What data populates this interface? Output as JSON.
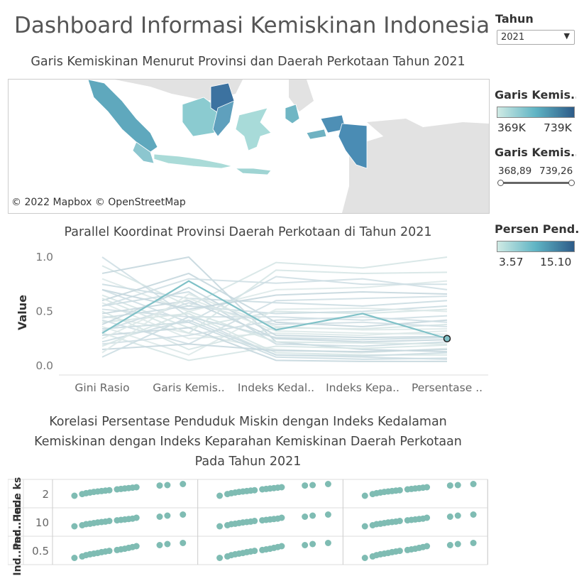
{
  "dashboard": {
    "title": "Dashboard Informasi Kemiskinan Indonesia",
    "map_title": "Garis Kemiskinan Menurut Provinsi dan Daerah Perkotaan Tahun 2021",
    "parallel_title": "Parallel Koordinat Provinsi Daerah Perkotaan di Tahun 2021",
    "scatter_title_1": "Korelasi Persentase Penduduk Miskin dengan Indeks Kedalaman",
    "scatter_title_2": "Kemiskinan dengan Indeks Keparahan Kemiskinan Daerah Perkotaan",
    "scatter_title_3": "Pada Tahun 2021",
    "map_copyright": "© 2022 Mapbox © OpenStreetMap"
  },
  "filters": {
    "year_label": "Tahun",
    "year_value": "2021",
    "legend_garis_title": "Garis Kemis..",
    "legend_garis_min": "369K",
    "legend_garis_max": "739K",
    "range_title": "Garis Kemis..",
    "range_min": "368,89",
    "range_max": "739,26",
    "range_low_fraction": 0,
    "range_high_fraction": 1,
    "legend_persen_title": "Persen Pend..",
    "legend_persen_min": "3.57",
    "legend_persen_max": "15.10"
  },
  "colors": {
    "ramp_light": "#cfeae4",
    "ramp_mid": "#5fb4c4",
    "ramp_dark": "#2d5b88",
    "highlight_line": "#7fc1c7",
    "scatter_point": "#7fbcb3",
    "map_land_gray": "#e2e2e2"
  },
  "chart_data": [
    {
      "type": "line",
      "subtype": "parallel_coordinates",
      "title": "Parallel Koordinat Provinsi Daerah Perkotaan di Tahun 2021",
      "ylabel": "Value",
      "categories": [
        "Gini Rasio",
        "Garis Kemis..",
        "Indeks Kedal..",
        "Indeks Kepa..",
        "Persentase .."
      ],
      "yticks": [
        "1.0",
        "0.5",
        "0.0"
      ],
      "ylim": [
        0,
        1
      ],
      "highlighted": [
        0.3,
        0.78,
        0.33,
        0.48,
        0.25
      ],
      "series": [
        {
          "values": [
            1.0,
            0.45,
            0.1,
            0.08,
            0.06
          ]
        },
        {
          "values": [
            0.92,
            0.55,
            0.95,
            0.9,
            1.0
          ]
        },
        {
          "values": [
            0.85,
            1.0,
            0.22,
            0.15,
            0.13
          ]
        },
        {
          "values": [
            0.8,
            0.5,
            0.7,
            0.72,
            0.78
          ]
        },
        {
          "values": [
            0.75,
            0.62,
            0.58,
            0.55,
            0.6
          ]
        },
        {
          "values": [
            0.7,
            0.4,
            0.82,
            0.75,
            0.75
          ]
        },
        {
          "values": [
            0.65,
            0.35,
            0.5,
            0.48,
            0.52
          ]
        },
        {
          "values": [
            0.6,
            0.85,
            0.4,
            0.36,
            0.42
          ]
        },
        {
          "values": [
            0.58,
            0.25,
            0.3,
            0.28,
            0.32
          ]
        },
        {
          "values": [
            0.55,
            0.68,
            0.2,
            0.18,
            0.22
          ]
        },
        {
          "values": [
            0.52,
            0.45,
            0.45,
            0.42,
            0.46
          ]
        },
        {
          "values": [
            0.5,
            0.15,
            0.35,
            0.34,
            0.38
          ]
        },
        {
          "values": [
            0.48,
            0.6,
            0.25,
            0.22,
            0.24
          ]
        },
        {
          "values": [
            0.46,
            0.3,
            0.15,
            0.12,
            0.16
          ]
        },
        {
          "values": [
            0.44,
            0.55,
            0.48,
            0.5,
            0.55
          ]
        },
        {
          "values": [
            0.42,
            0.2,
            0.6,
            0.62,
            0.64
          ]
        },
        {
          "values": [
            0.4,
            0.48,
            0.12,
            0.1,
            0.1
          ]
        },
        {
          "values": [
            0.38,
            0.72,
            0.28,
            0.26,
            0.27
          ]
        },
        {
          "values": [
            0.36,
            0.1,
            0.52,
            0.53,
            0.5
          ]
        },
        {
          "values": [
            0.34,
            0.4,
            0.08,
            0.06,
            0.07
          ]
        },
        {
          "values": [
            0.32,
            0.58,
            0.38,
            0.4,
            0.36
          ]
        },
        {
          "values": [
            0.3,
            0.05,
            0.18,
            0.16,
            0.19
          ]
        },
        {
          "values": [
            0.28,
            0.35,
            0.05,
            0.04,
            0.04
          ]
        },
        {
          "values": [
            0.25,
            0.62,
            0.32,
            0.3,
            0.29
          ]
        },
        {
          "values": [
            0.22,
            0.42,
            0.1,
            0.09,
            0.12
          ]
        },
        {
          "values": [
            0.2,
            0.28,
            0.42,
            0.45,
            0.4
          ]
        },
        {
          "values": [
            0.18,
            0.5,
            0.22,
            0.21,
            0.2
          ]
        },
        {
          "values": [
            0.15,
            0.2,
            0.14,
            0.13,
            0.15
          ]
        },
        {
          "values": [
            0.12,
            0.66,
            0.36,
            0.33,
            0.34
          ]
        },
        {
          "values": [
            0.08,
            0.45,
            0.26,
            0.24,
            0.26
          ]
        },
        {
          "values": [
            0.55,
            0.8,
            0.76,
            0.8,
            0.7
          ]
        },
        {
          "values": [
            0.62,
            0.3,
            0.88,
            0.85,
            0.86
          ]
        },
        {
          "values": [
            0.7,
            0.52,
            0.65,
            0.68,
            0.66
          ]
        }
      ]
    },
    {
      "type": "scatter",
      "subtype": "scatter_matrix",
      "title": "Korelasi Persentase Penduduk Miskin dengan Indeks Kedalaman Kemiskinan dengan Indeks Keparahan Kemiskinan Daerah Perkotaan Pada Tahun 2021",
      "row_labels": [
        "Inde ks..",
        "Ind..Per..",
        "Ind..Per.."
      ],
      "row_ticks": [
        "2",
        "10",
        "0.5"
      ],
      "rows": [
        {
          "x": [
            0.2,
            0.4,
            0.5,
            0.6,
            0.7,
            0.8,
            0.9,
            1.0,
            1.1,
            1.3,
            1.4,
            1.5,
            1.6,
            1.7,
            1.8,
            2.4,
            2.6,
            3.0
          ],
          "y": [
            0.4,
            0.48,
            0.52,
            0.55,
            0.58,
            0.6,
            0.62,
            0.64,
            0.66,
            0.7,
            0.72,
            0.74,
            0.76,
            0.78,
            0.8,
            0.88,
            0.9,
            0.95
          ]
        },
        {
          "x": [
            0.2,
            0.4,
            0.5,
            0.6,
            0.7,
            0.8,
            0.9,
            1.0,
            1.1,
            1.3,
            1.4,
            1.5,
            1.6,
            1.7,
            1.8,
            2.4,
            2.6,
            3.0
          ],
          "y": [
            0.3,
            0.35,
            0.4,
            0.42,
            0.45,
            0.48,
            0.5,
            0.52,
            0.55,
            0.58,
            0.6,
            0.62,
            0.64,
            0.66,
            0.7,
            0.75,
            0.8,
            0.85
          ]
        },
        {
          "x": [
            0.2,
            0.4,
            0.5,
            0.6,
            0.7,
            0.8,
            0.9,
            1.0,
            1.1,
            1.3,
            1.4,
            1.5,
            1.6,
            1.7,
            1.8,
            2.4,
            2.6,
            3.0
          ],
          "y": [
            0.15,
            0.22,
            0.28,
            0.32,
            0.35,
            0.38,
            0.42,
            0.45,
            0.48,
            0.52,
            0.55,
            0.58,
            0.62,
            0.66,
            0.7,
            0.75,
            0.8,
            0.85
          ]
        }
      ]
    }
  ]
}
